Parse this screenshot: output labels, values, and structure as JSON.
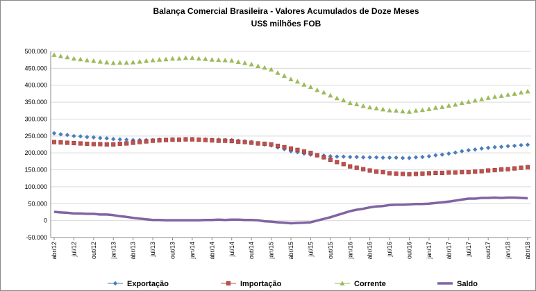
{
  "chart_data": {
    "type": "line",
    "title": "Balança Comercial Brasileira -  Valores Acumulados de Doze Meses",
    "subtitle": "US$ milhões FOB",
    "categories": [
      "abr/12",
      null,
      null,
      "jul/12",
      null,
      null,
      "out/12",
      null,
      null,
      "jan/13",
      null,
      null,
      "abr/13",
      null,
      null,
      "jul/13",
      null,
      null,
      "out/13",
      null,
      null,
      "jan/14",
      null,
      null,
      "abr/14",
      null,
      null,
      "jul/14",
      null,
      null,
      "out/14",
      null,
      null,
      "jan/15",
      null,
      null,
      "abr/15",
      null,
      null,
      "jul/15",
      null,
      null,
      "out/15",
      null,
      null,
      "jan/16",
      null,
      null,
      "abr/16",
      null,
      null,
      "jul/16",
      null,
      null,
      "out/16",
      null,
      null,
      "jan/17",
      null,
      null,
      "abr/17",
      null,
      null,
      "jul/17",
      null,
      null,
      "out/17",
      null,
      null,
      "jan/18",
      null,
      null,
      "abr/18"
    ],
    "ylim": [
      -50000,
      500000
    ],
    "yticks": [
      {
        "value": -50000,
        "label": "-50.000"
      },
      0,
      {
        "value": 50000,
        "label": "50.000"
      },
      {
        "value": 100000,
        "label": "100.000"
      },
      {
        "value": 150000,
        "label": "150.000"
      },
      {
        "value": 200000,
        "label": "200.000"
      },
      {
        "value": 250000,
        "label": "250.000"
      },
      {
        "value": 300000,
        "label": "300.000"
      },
      {
        "value": 350000,
        "label": "350.000"
      },
      {
        "value": 400000,
        "label": "400.000"
      },
      {
        "value": 450000,
        "label": "450.000"
      },
      {
        "value": 500000,
        "label": "500.000"
      }
    ],
    "grid": true,
    "legend": "bottom",
    "series": [
      {
        "name": "Exportação",
        "color": "#4a7ebb",
        "marker": "diamond",
        "values": [
          258000,
          255000,
          253000,
          250000,
          249000,
          247000,
          246000,
          244000,
          243000,
          241000,
          240000,
          239000,
          238000,
          238000,
          238000,
          238000,
          239000,
          239000,
          240000,
          240000,
          241000,
          241000,
          240000,
          240000,
          239000,
          239000,
          238000,
          238000,
          236000,
          234000,
          232000,
          229000,
          225000,
          222000,
          216000,
          211000,
          205000,
          202000,
          198000,
          195000,
          193000,
          192000,
          190000,
          189000,
          189000,
          188000,
          188000,
          187000,
          187000,
          187000,
          186000,
          186000,
          186000,
          185000,
          185000,
          187000,
          188000,
          190000,
          193000,
          195000,
          198000,
          201000,
          205000,
          208000,
          210000,
          213000,
          215000,
          217000,
          218000,
          220000,
          221000,
          223000,
          224000
        ]
      },
      {
        "name": "Importação",
        "color": "#c0504d",
        "marker": "square",
        "values": [
          232000,
          231000,
          230000,
          229000,
          228000,
          227000,
          226000,
          226000,
          225000,
          225000,
          227000,
          228000,
          230000,
          232000,
          234000,
          236000,
          237000,
          238000,
          239000,
          239000,
          240000,
          240000,
          239000,
          238000,
          237000,
          236000,
          236000,
          235000,
          233000,
          232000,
          230000,
          228000,
          227000,
          225000,
          221000,
          217000,
          213000,
          209000,
          204000,
          200000,
          193000,
          187000,
          180000,
          173000,
          167000,
          160000,
          156000,
          152000,
          148000,
          145000,
          143000,
          140000,
          139000,
          138000,
          137000,
          138000,
          139000,
          140000,
          141000,
          141000,
          142000,
          142000,
          143000,
          143000,
          145000,
          146000,
          148000,
          149000,
          151000,
          152000,
          154000,
          156000,
          158000
        ]
      },
      {
        "name": "Corrente",
        "color": "#9bbb59",
        "marker": "triangle",
        "values": [
          490000,
          486000,
          483000,
          479000,
          477000,
          474000,
          472000,
          470000,
          468000,
          466000,
          467000,
          467000,
          468000,
          470000,
          472000,
          474000,
          476000,
          477000,
          479000,
          479000,
          481000,
          481000,
          479000,
          478000,
          476000,
          475000,
          474000,
          473000,
          469000,
          466000,
          462000,
          457000,
          452000,
          447000,
          437000,
          428000,
          418000,
          411000,
          402000,
          395000,
          386000,
          379000,
          370000,
          362000,
          356000,
          348000,
          344000,
          339000,
          335000,
          332000,
          329000,
          326000,
          325000,
          323000,
          322000,
          325000,
          327000,
          330000,
          334000,
          336000,
          340000,
          343000,
          348000,
          351000,
          355000,
          359000,
          363000,
          366000,
          369000,
          372000,
          375000,
          379000,
          382000
        ]
      },
      {
        "name": "Saldo",
        "color": "#8064a2",
        "marker": "none",
        "values": [
          26000,
          24000,
          23000,
          21000,
          21000,
          20000,
          20000,
          18000,
          18000,
          16000,
          13000,
          11000,
          8000,
          6000,
          4000,
          2000,
          2000,
          1000,
          1000,
          1000,
          1000,
          1000,
          1000,
          2000,
          2000,
          3000,
          2000,
          3000,
          3000,
          2000,
          2000,
          1000,
          -2000,
          -3000,
          -5000,
          -6000,
          -8000,
          -7000,
          -6000,
          -5000,
          0,
          5000,
          10000,
          16000,
          22000,
          28000,
          32000,
          35000,
          39000,
          42000,
          43000,
          46000,
          47000,
          47000,
          48000,
          49000,
          49000,
          50000,
          52000,
          54000,
          56000,
          59000,
          62000,
          65000,
          65000,
          67000,
          67000,
          68000,
          67000,
          68000,
          68000,
          67000,
          66000
        ]
      }
    ]
  }
}
